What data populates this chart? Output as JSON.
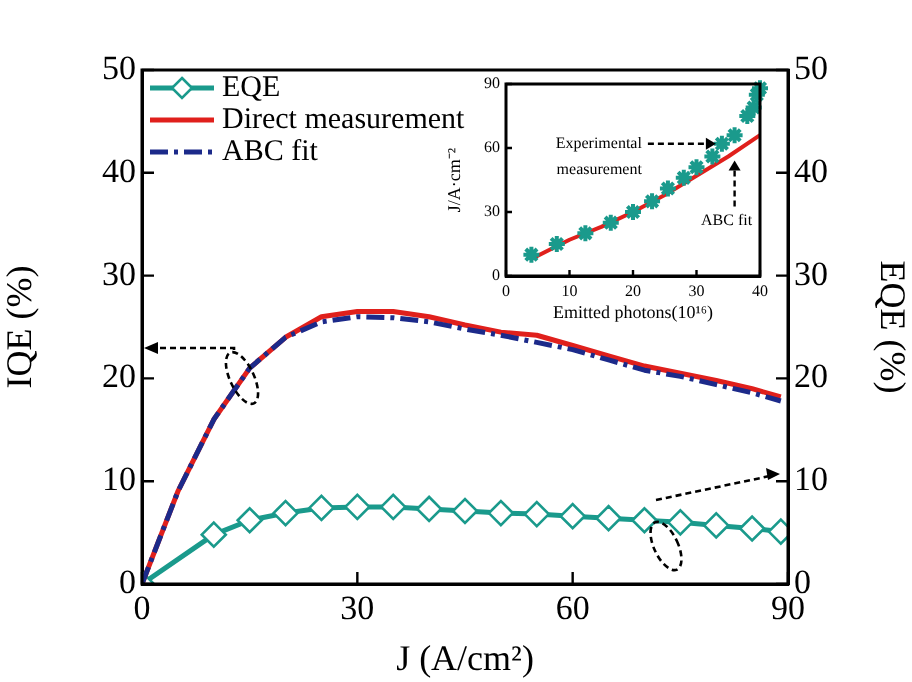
{
  "chart_data": [
    {
      "type": "line",
      "xlabel": "J (A/cm²)",
      "ylabel": "IQE (%)",
      "y2label": "EQE (%)",
      "xlim": [
        0,
        90
      ],
      "xticks": [
        0,
        30,
        60,
        90
      ],
      "ylim": [
        0,
        50
      ],
      "yticks": [
        0,
        10,
        20,
        30,
        40,
        50
      ],
      "y2lim": [
        0,
        50
      ],
      "y2ticks": [
        0,
        10,
        20,
        30,
        40,
        50
      ],
      "grid": false,
      "legend": "top left",
      "series": [
        {
          "name": "EQE",
          "color": "#1a9a8c",
          "axis": "y2",
          "marker": "diamond",
          "line_style": "solid",
          "x": [
            0,
            10,
            15,
            20,
            25,
            30,
            35,
            40,
            45,
            50,
            55,
            60,
            65,
            70,
            75,
            80,
            85,
            89
          ],
          "values": [
            0,
            4.8,
            6.2,
            6.9,
            7.4,
            7.5,
            7.5,
            7.3,
            7.1,
            6.9,
            6.8,
            6.6,
            6.4,
            6.2,
            6.0,
            5.7,
            5.4,
            5.1
          ]
        },
        {
          "name": "Direct measurement",
          "color": "#e0201c",
          "marker": "none",
          "line_style": "solid",
          "x": [
            0,
            5,
            10,
            15,
            20,
            25,
            30,
            35,
            40,
            45,
            50,
            55,
            60,
            65,
            70,
            75,
            80,
            85,
            89
          ],
          "values": [
            0,
            9,
            16,
            21,
            24,
            26,
            26.5,
            26.5,
            26,
            25.2,
            24.5,
            24.2,
            23.2,
            22.2,
            21.2,
            20.5,
            19.8,
            19,
            18.2
          ]
        },
        {
          "name": "ABC fit",
          "color": "#1c2a8a",
          "marker": "none",
          "line_style": "dashed",
          "x": [
            0,
            5,
            10,
            15,
            20,
            25,
            30,
            35,
            40,
            45,
            50,
            55,
            60,
            65,
            70,
            75,
            80,
            85,
            89
          ],
          "values": [
            0,
            9,
            16,
            21,
            24,
            25.5,
            26,
            25.9,
            25.5,
            24.8,
            24.2,
            23.5,
            22.8,
            21.8,
            20.8,
            20.2,
            19.4,
            18.6,
            17.8
          ]
        }
      ]
    },
    {
      "type": "scatter",
      "xlabel": "Emitted photons(10¹⁶)",
      "ylabel": "J/A·cm⁻²",
      "xlim": [
        0,
        40
      ],
      "xticks": [
        0,
        10,
        20,
        30,
        40
      ],
      "ylim": [
        0,
        90
      ],
      "yticks": [
        0,
        30,
        60,
        90
      ],
      "grid": false,
      "legend": false,
      "annotations": [
        {
          "text": "Experimental measurement",
          "x": 34,
          "y": 62
        },
        {
          "text": "ABC fit",
          "x": 36,
          "y": 57
        }
      ],
      "series": [
        {
          "color": "#1a9a8c",
          "marker": "cross",
          "x": [
            4,
            8,
            12.5,
            16.5,
            20,
            23,
            25.5,
            28,
            30,
            32.5,
            34,
            36,
            38,
            39,
            39.5,
            40
          ],
          "values": [
            10,
            15,
            20,
            25,
            30,
            35,
            41,
            46,
            51,
            56,
            62,
            66,
            75,
            79,
            85,
            88
          ]
        },
        {
          "type": "line",
          "color": "#e0201c",
          "marker": "none",
          "line_style": "solid",
          "x": [
            4,
            10,
            15,
            20,
            25,
            30,
            35,
            40
          ],
          "values": [
            8,
            17,
            23,
            30,
            38,
            47,
            56,
            66
          ]
        }
      ]
    }
  ]
}
